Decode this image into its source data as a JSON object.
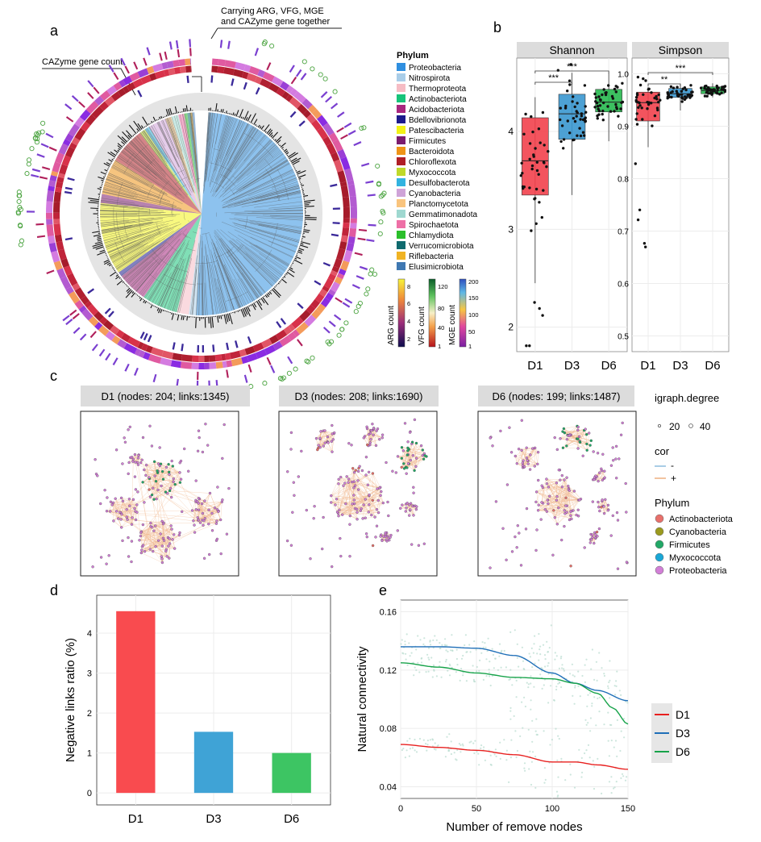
{
  "panel_letters": [
    "a",
    "b",
    "c",
    "d",
    "e"
  ],
  "panel_a": {
    "annotation_top": [
      "Carrying ARG, VFG, MGE",
      "and CAZyme gene together"
    ],
    "annotation_left": "CAZyme gene count",
    "legend_title": "Phylum",
    "phyla": [
      {
        "name": "Proteobacteria",
        "color": "#2f8fe0"
      },
      {
        "name": "Nitrospirota",
        "color": "#a9cde8"
      },
      {
        "name": "Thermoproteota",
        "color": "#f6bcc4"
      },
      {
        "name": "Actinobacteriota",
        "color": "#17c47a"
      },
      {
        "name": "Acidobacteriota",
        "color": "#a8277f"
      },
      {
        "name": "Bdellovibrionota",
        "color": "#1c1a8c"
      },
      {
        "name": "Patescibacteria",
        "color": "#f2f216"
      },
      {
        "name": "Firmicutes",
        "color": "#7b1c6e"
      },
      {
        "name": "Bacteroidota",
        "color": "#ef9416"
      },
      {
        "name": "Chloroflexota",
        "color": "#b01f26"
      },
      {
        "name": "Myxococcota",
        "color": "#bfd92a"
      },
      {
        "name": "Desulfobacterota",
        "color": "#32b3e0"
      },
      {
        "name": "Cyanobacteria",
        "color": "#cfa3d8"
      },
      {
        "name": "Planctomycetota",
        "color": "#f9c47d"
      },
      {
        "name": "Gemmatimonadota",
        "color": "#9fd8d0"
      },
      {
        "name": "Spirochaetota",
        "color": "#ee6fa6"
      },
      {
        "name": "Chlamydiota",
        "color": "#2bbf2b"
      },
      {
        "name": "Verrucomicrobiota",
        "color": "#0f6a6e"
      },
      {
        "name": "Riflebacteria",
        "color": "#f0b323"
      },
      {
        "name": "Elusimicrobiota",
        "color": "#3f78b2"
      }
    ],
    "colorbars": [
      {
        "label": "ARG count",
        "ticks": [
          "8",
          "6",
          "4",
          "2"
        ]
      },
      {
        "label": "VFG count",
        "ticks": [
          "120",
          "80",
          "40",
          "1"
        ]
      },
      {
        "label": "MGE count",
        "ticks": [
          "200",
          "150",
          "100",
          "50",
          "1"
        ]
      }
    ]
  },
  "panel_b": {
    "facets": [
      "Shannon",
      "Simpson"
    ],
    "categories": [
      "D1",
      "D3",
      "D6"
    ],
    "sig_shannon": [
      "***",
      "***"
    ],
    "sig_simpson": [
      "**",
      "***"
    ]
  },
  "panel_c": {
    "networks": [
      {
        "title": "D1 (nodes: 204; links:1345)"
      },
      {
        "title": "D3 (nodes: 208; links:1690)"
      },
      {
        "title": "D6 (nodes: 199; links:1487)"
      }
    ],
    "legend_degree_title": "igraph.degree",
    "legend_degree_values": [
      "20",
      "40"
    ],
    "legend_cor_title": "cor",
    "legend_cor_values": [
      "-",
      "+"
    ],
    "legend_phylum_title": "Phylum",
    "legend_phyla": [
      {
        "name": "Actinobacteriota",
        "color": "#e8706b"
      },
      {
        "name": "Cyanobacteria",
        "color": "#9b9a1e"
      },
      {
        "name": "Firmicutes",
        "color": "#22a867"
      },
      {
        "name": "Myxococcota",
        "color": "#1aa7d6"
      },
      {
        "name": "Proteobacteria",
        "color": "#d27fd7"
      }
    ]
  },
  "chart_data": [
    {
      "type": "box",
      "panel": "b",
      "title": "Shannon",
      "categories": [
        "D1",
        "D3",
        "D6"
      ],
      "colors": [
        "#f2414c",
        "#3a97cf",
        "#27b94f"
      ],
      "stats": [
        {
          "min": 2.45,
          "q1": 3.35,
          "median": 3.7,
          "q3": 4.14,
          "max": 4.35
        },
        {
          "min": 3.35,
          "q1": 3.92,
          "median": 4.18,
          "q3": 4.38,
          "max": 4.6
        },
        {
          "min": 3.9,
          "q1": 4.2,
          "median": 4.3,
          "q3": 4.43,
          "max": 4.6
        }
      ],
      "ylim": [
        1.75,
        4.75
      ],
      "yticks": [
        2,
        3,
        4
      ]
    },
    {
      "type": "box",
      "panel": "b",
      "title": "Simpson",
      "categories": [
        "D1",
        "D3",
        "D6"
      ],
      "colors": [
        "#f2414c",
        "#3a97cf",
        "#27b94f"
      ],
      "stats": [
        {
          "min": 0.86,
          "q1": 0.91,
          "median": 0.945,
          "q3": 0.965,
          "max": 0.975
        },
        {
          "min": 0.93,
          "q1": 0.955,
          "median": 0.962,
          "q3": 0.972,
          "max": 0.98
        },
        {
          "min": 0.955,
          "q1": 0.962,
          "median": 0.968,
          "q3": 0.975,
          "max": 0.982
        }
      ],
      "ylim": [
        0.47,
        1.03
      ],
      "yticks": [
        0.5,
        0.6,
        0.7,
        0.8,
        0.9,
        1.0
      ]
    },
    {
      "type": "bar",
      "panel": "d",
      "categories": [
        "D1",
        "D3",
        "D6"
      ],
      "values": [
        4.55,
        1.53,
        1.0
      ],
      "colors": [
        "#f94b4f",
        "#3fa3d6",
        "#3dc563"
      ],
      "ylabel": "Negative links ratio (%)",
      "ylim": [
        -0.3,
        4.95
      ],
      "yticks": [
        0,
        1,
        2,
        3,
        4
      ]
    },
    {
      "type": "line",
      "panel": "e",
      "xlabel": "Number of remove nodes",
      "ylabel": "Natural connectivity",
      "xlim": [
        0,
        150
      ],
      "ylim": [
        0.032,
        0.168
      ],
      "xticks": [
        0,
        50,
        100,
        150
      ],
      "yticks": [
        0.04,
        0.08,
        0.12,
        0.16
      ],
      "series": [
        {
          "name": "D1",
          "color": "#e8201f",
          "x": [
            0,
            25,
            50,
            75,
            100,
            115,
            130,
            150
          ],
          "y": [
            0.069,
            0.067,
            0.065,
            0.062,
            0.057,
            0.057,
            0.055,
            0.052
          ]
        },
        {
          "name": "D3",
          "color": "#1f6fb8",
          "x": [
            0,
            25,
            50,
            75,
            100,
            115,
            130,
            150
          ],
          "y": [
            0.136,
            0.136,
            0.135,
            0.13,
            0.118,
            0.111,
            0.106,
            0.099
          ]
        },
        {
          "name": "D6",
          "color": "#17a34a",
          "x": [
            0,
            25,
            50,
            75,
            100,
            115,
            130,
            140,
            150
          ],
          "y": [
            0.125,
            0.122,
            0.118,
            0.115,
            0.114,
            0.111,
            0.104,
            0.094,
            0.083
          ]
        }
      ]
    }
  ]
}
